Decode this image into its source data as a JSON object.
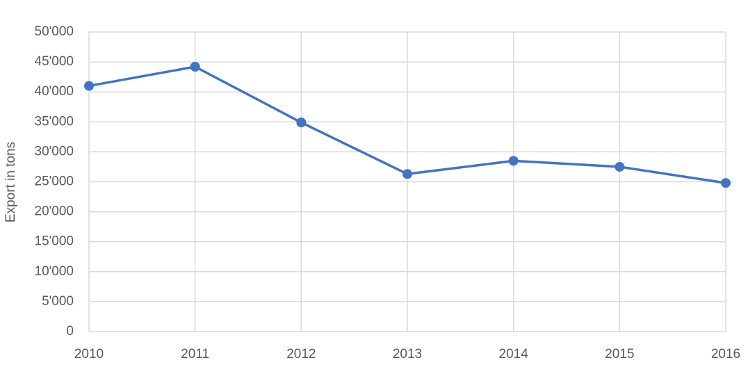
{
  "chart_data": {
    "type": "line",
    "y_label": "Export in tons",
    "x": [
      2010,
      2011,
      2012,
      2013,
      2014,
      2015,
      2016
    ],
    "xlim": [
      2010,
      2016
    ],
    "xticks": [
      2010,
      2011,
      2012,
      2013,
      2014,
      2015,
      2016
    ],
    "series": [
      {
        "name": "Export",
        "color": "#4472c4",
        "values": [
          41000,
          44200,
          34900,
          26300,
          28500,
          27500,
          24800
        ]
      }
    ],
    "ylim": [
      0,
      50000
    ],
    "yticks": [
      0,
      {
        "value": 5000,
        "label": "5'000"
      },
      {
        "value": 10000,
        "label": "10'000"
      },
      {
        "value": 15000,
        "label": "15'000"
      },
      {
        "value": 20000,
        "label": "20'000"
      },
      {
        "value": 25000,
        "label": "25'000"
      },
      {
        "value": 30000,
        "label": "30'000"
      },
      {
        "value": 35000,
        "label": "35'000"
      },
      {
        "value": 40000,
        "label": "40'000"
      },
      {
        "value": 45000,
        "label": "45'000"
      },
      {
        "value": 50000,
        "label": "50'000"
      }
    ],
    "grid": true
  }
}
